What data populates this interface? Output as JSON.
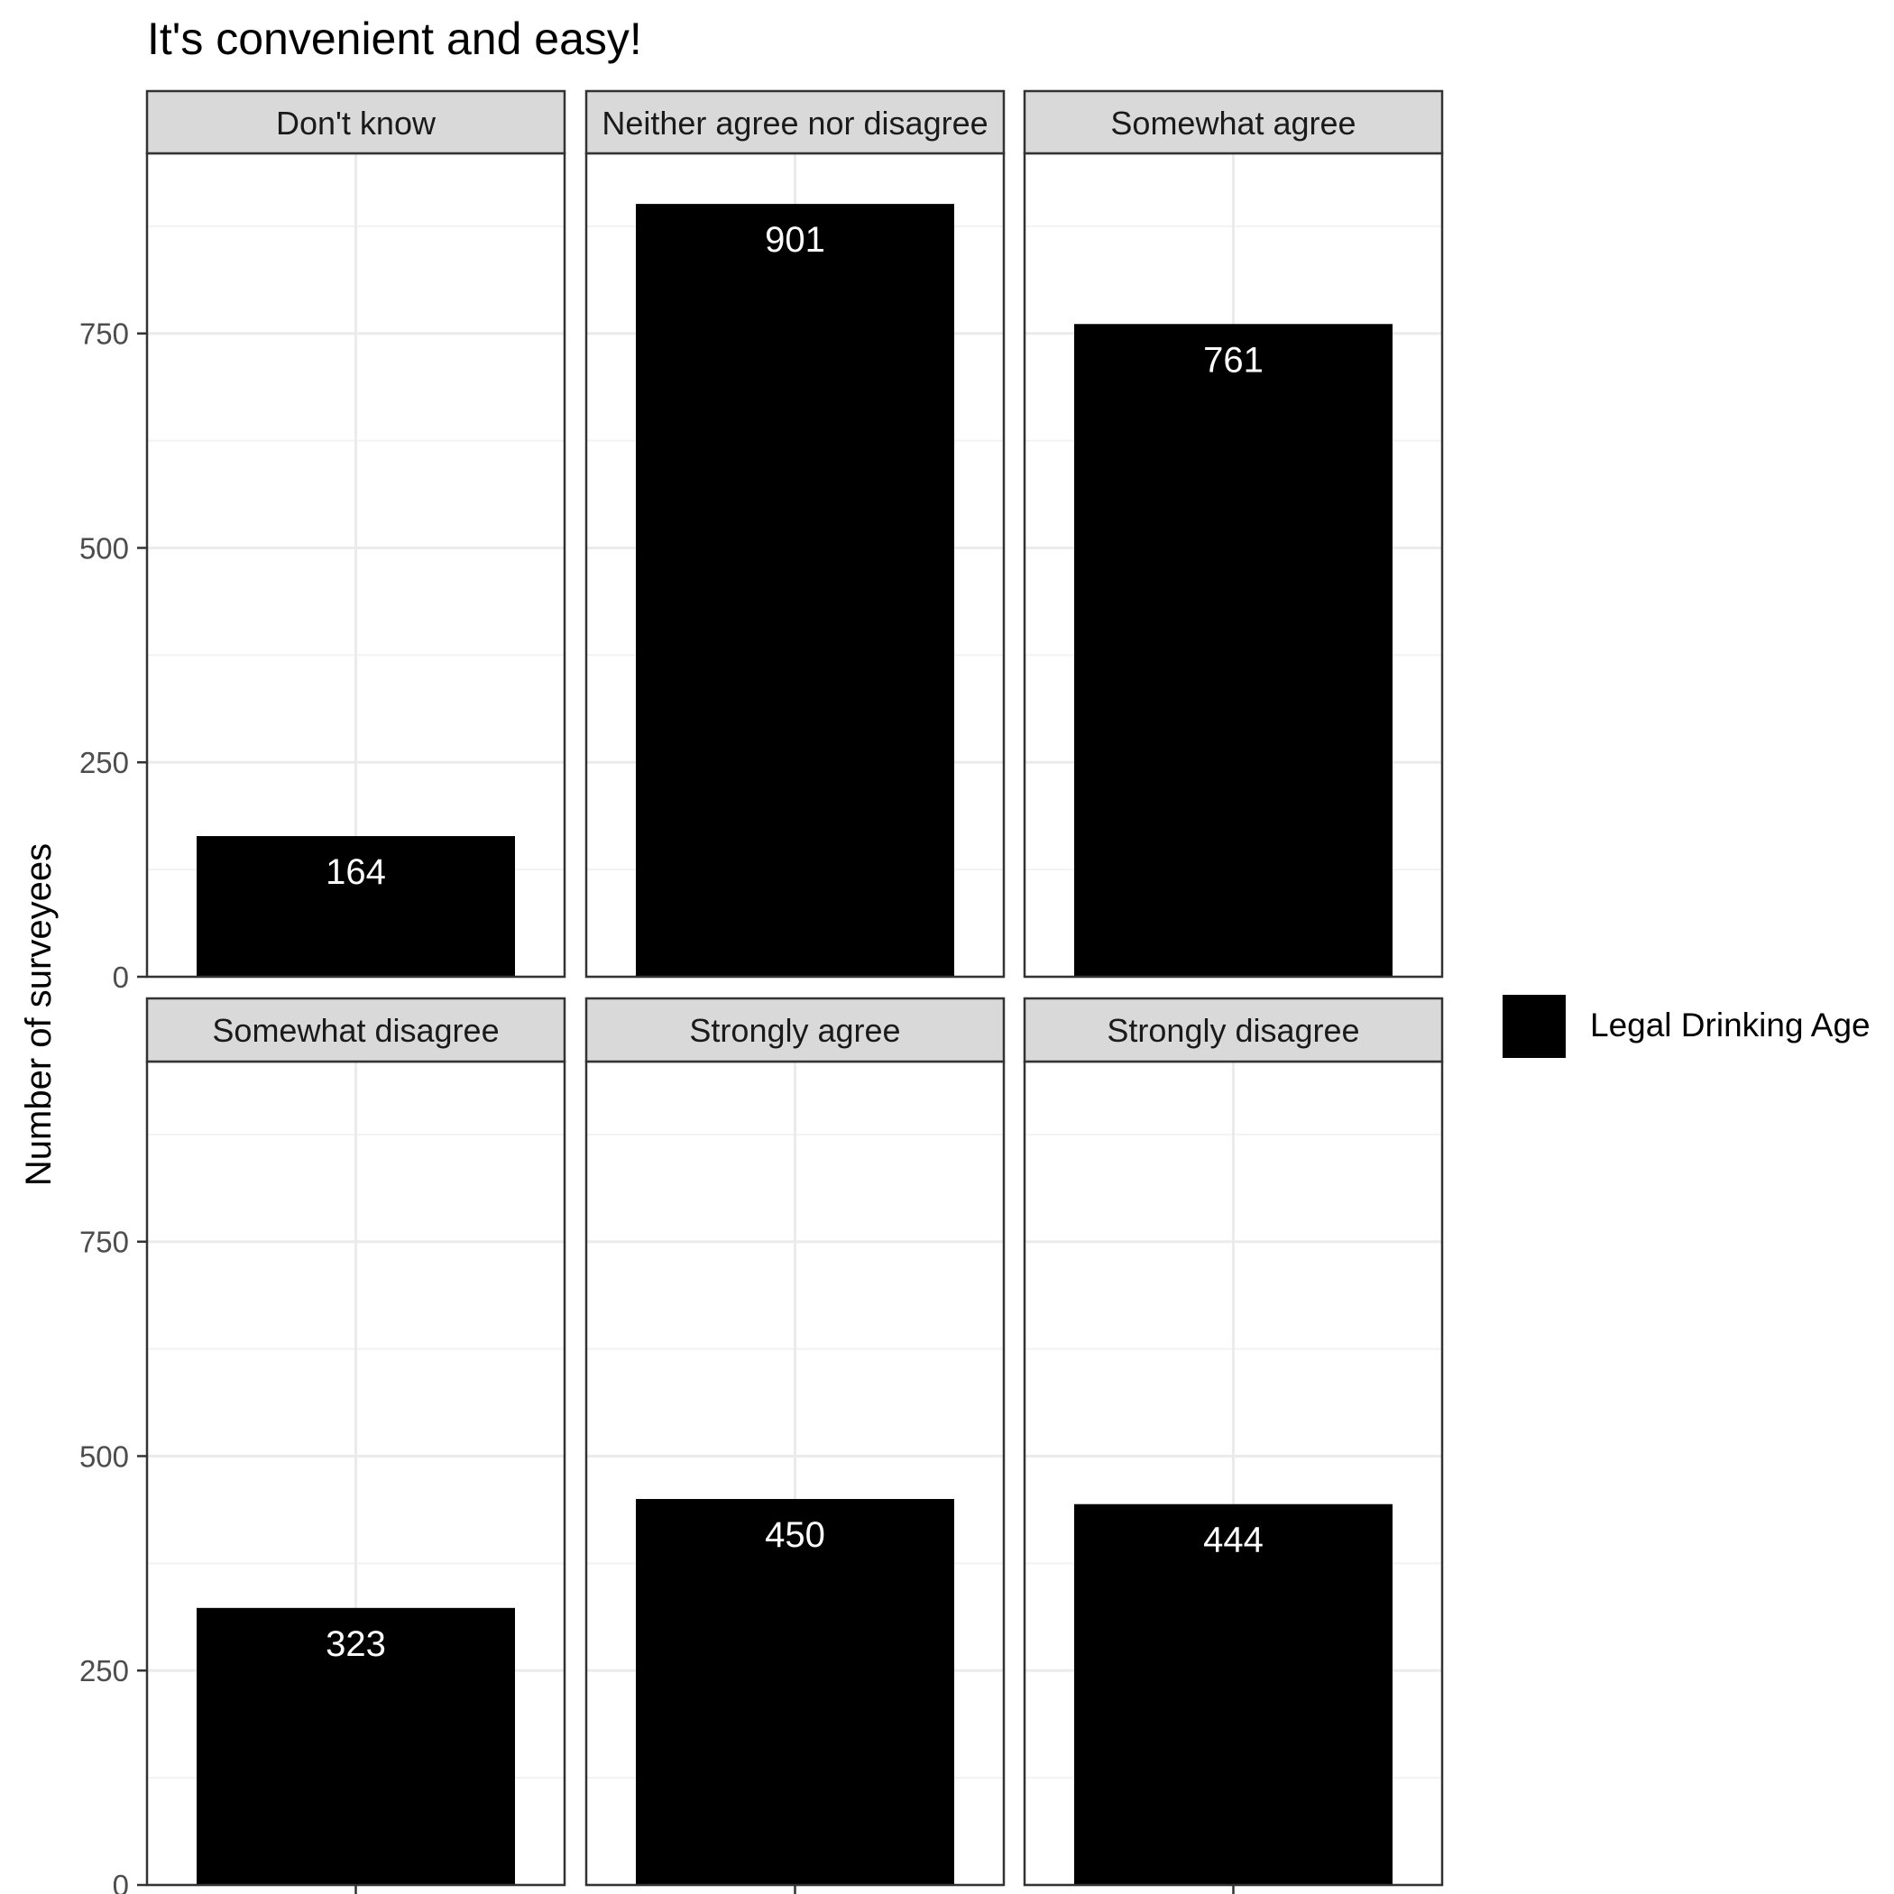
{
  "chart_data": {
    "type": "bar",
    "title": "It's convenient and easy!",
    "xlabel": "",
    "ylabel": "Number of surveyees",
    "ylim": [
      0,
      960
    ],
    "y_ticks": [
      0,
      250,
      500,
      750
    ],
    "grid": true,
    "facets": [
      "Don't know",
      "Neither agree nor disagree",
      "Somewhat agree",
      "Somewhat disagree",
      "Strongly agree",
      "Strongly disagree"
    ],
    "series": [
      {
        "name": "Legal Drinking Age",
        "values": [
          164,
          901,
          761,
          323,
          450,
          444
        ]
      }
    ],
    "data_labels": [
      "164",
      "901",
      "761",
      "323",
      "450",
      "444"
    ],
    "legend": {
      "position": "right",
      "entries": [
        "Legal Drinking Age"
      ]
    },
    "colors": {
      "bar": "#000000",
      "data_label": "#ffffff",
      "strip_fill": "#d9d9d9",
      "grid": "#ebebeb",
      "border": "#333333"
    }
  }
}
